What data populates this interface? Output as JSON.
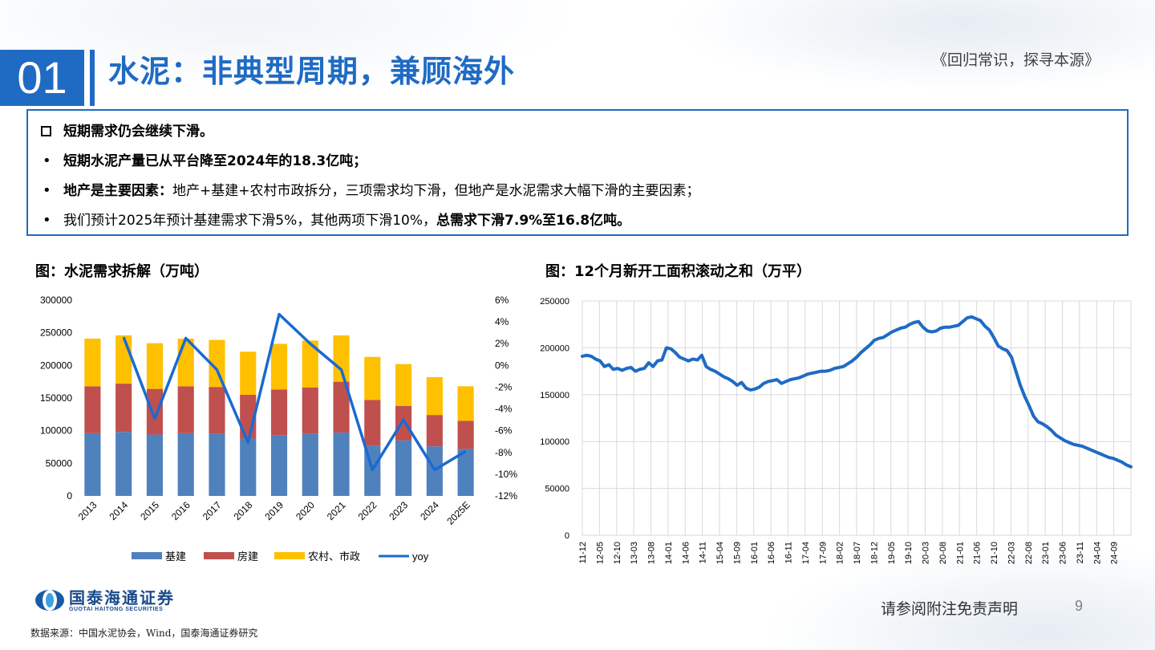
{
  "header": {
    "section_number": "01",
    "title": "水泥：非典型周期，兼顾海外",
    "slogan": "《回归常识，探寻本源》"
  },
  "summary": {
    "heading": "短期需求仍会继续下滑。",
    "line1_bold": "短期水泥产量已从平台降至2024年的18.3亿吨；",
    "line2_bold": "地产是主要因素：",
    "line2_rest": "地产+基建+农村市政拆分，三项需求均下滑，但地产是水泥需求大幅下滑的主要因素；",
    "line3_rest": "我们预计2025年预计基建需求下滑5%，其他两项下滑10%，",
    "line3_bold": "总需求下滑7.9%至16.8亿吨。"
  },
  "chart_data": [
    {
      "type": "bar",
      "stacked": true,
      "title": "图：水泥需求拆解（万吨）",
      "categories": [
        "2013",
        "2014",
        "2015",
        "2016",
        "2017",
        "2018",
        "2019",
        "2020",
        "2021",
        "2022",
        "2023",
        "2024",
        "2025E"
      ],
      "series": [
        {
          "name": "基建",
          "color": "#4f81bd",
          "values": [
            96000,
            98000,
            94000,
            96000,
            95000,
            88000,
            93000,
            95000,
            97000,
            77000,
            85000,
            76000,
            72000
          ]
        },
        {
          "name": "房建",
          "color": "#c0504d",
          "values": [
            72000,
            74000,
            70000,
            72000,
            72000,
            67000,
            70000,
            71000,
            78000,
            70000,
            53000,
            48000,
            43000
          ]
        },
        {
          "name": "农村、市政",
          "color": "#ffc000",
          "values": [
            73000,
            74000,
            70000,
            73000,
            72000,
            66000,
            70000,
            72000,
            71000,
            66000,
            64000,
            58000,
            53000
          ]
        }
      ],
      "line_series": {
        "name": "yoy",
        "color": "#1a6ad2",
        "axis": "right",
        "values": [
          null,
          2.6,
          -4.9,
          2.5,
          -0.4,
          -7.1,
          4.7,
          2.0,
          -0.4,
          -9.6,
          -5.0,
          -9.6,
          -7.9
        ]
      },
      "ylim": [
        0,
        300000
      ],
      "y_ticks": [
        "300000",
        "250000",
        "200000",
        "150000",
        "100000",
        "50000",
        "0"
      ],
      "y2lim": [
        -12,
        6
      ],
      "y2_ticks": [
        "6%",
        "4%",
        "2%",
        "0%",
        "-2%",
        "-4%",
        "-6%",
        "-8%",
        "-10%",
        "-12%"
      ],
      "legend": [
        "基建",
        "房建",
        "农村、市政",
        "yoy"
      ]
    },
    {
      "type": "line",
      "title": "图：12个月新开工面积滚动之和（万平）",
      "series": [
        {
          "name": "新开工面积滚动之和",
          "color": "#1f6bc4",
          "values": [
            191000,
            192000,
            191000,
            188000,
            186000,
            180000,
            182000,
            177000,
            178000,
            176000,
            178000,
            179000,
            175000,
            177000,
            178000,
            184000,
            180000,
            186000,
            187000,
            200000,
            199000,
            195000,
            190000,
            188000,
            186000,
            188000,
            187000,
            192000,
            180000,
            177000,
            175000,
            172000,
            169000,
            167000,
            164000,
            160000,
            163000,
            157000,
            155000,
            156000,
            158000,
            162000,
            164000,
            165000,
            166000,
            162000,
            164000,
            166000,
            167000,
            168000,
            170000,
            172000,
            173000,
            174000,
            175000,
            175000,
            176000,
            178000,
            179000,
            180000,
            183000,
            186000,
            190000,
            195000,
            199000,
            203000,
            208000,
            210000,
            211000,
            214000,
            217000,
            219000,
            221000,
            222000,
            225000,
            227000,
            228000,
            222000,
            218000,
            217000,
            218000,
            221000,
            222000,
            222000,
            223000,
            224000,
            228000,
            232000,
            233000,
            231000,
            229000,
            223000,
            219000,
            211000,
            202000,
            199000,
            197000,
            190000,
            175000,
            160000,
            148000,
            138000,
            127000,
            121000,
            119000,
            116000,
            112000,
            107000,
            104000,
            101000,
            99000,
            97000,
            96000,
            95000,
            93000,
            91000,
            89000,
            87000,
            85000,
            83000,
            82000,
            80000,
            78000,
            75000,
            73000
          ]
        }
      ],
      "x_ticks": [
        "11-12",
        "12-05",
        "12-10",
        "13-03",
        "13-08",
        "14-01",
        "14-06",
        "14-11",
        "15-04",
        "15-09",
        "16-01",
        "16-06",
        "16-11",
        "17-04",
        "17-09",
        "18-02",
        "18-07",
        "18-12",
        "19-05",
        "19-10",
        "20-03",
        "20-08",
        "21-01",
        "21-06",
        "21-10",
        "22-03",
        "22-08",
        "23-01",
        "23-06",
        "23-11",
        "24-04",
        "24-09"
      ],
      "ylim": [
        0,
        250000
      ],
      "y_ticks": [
        "250000",
        "200000",
        "150000",
        "100000",
        "50000",
        "0"
      ],
      "grid": true
    }
  ],
  "footer": {
    "logo_cn": "国泰海通证券",
    "logo_en": "GUOTAI HAITONG SECURITIES",
    "disclaimer": "请参阅附注免责声明",
    "page_number": "9",
    "source": "数据来源：中国水泥协会，Wind，国泰海通证券研究"
  }
}
